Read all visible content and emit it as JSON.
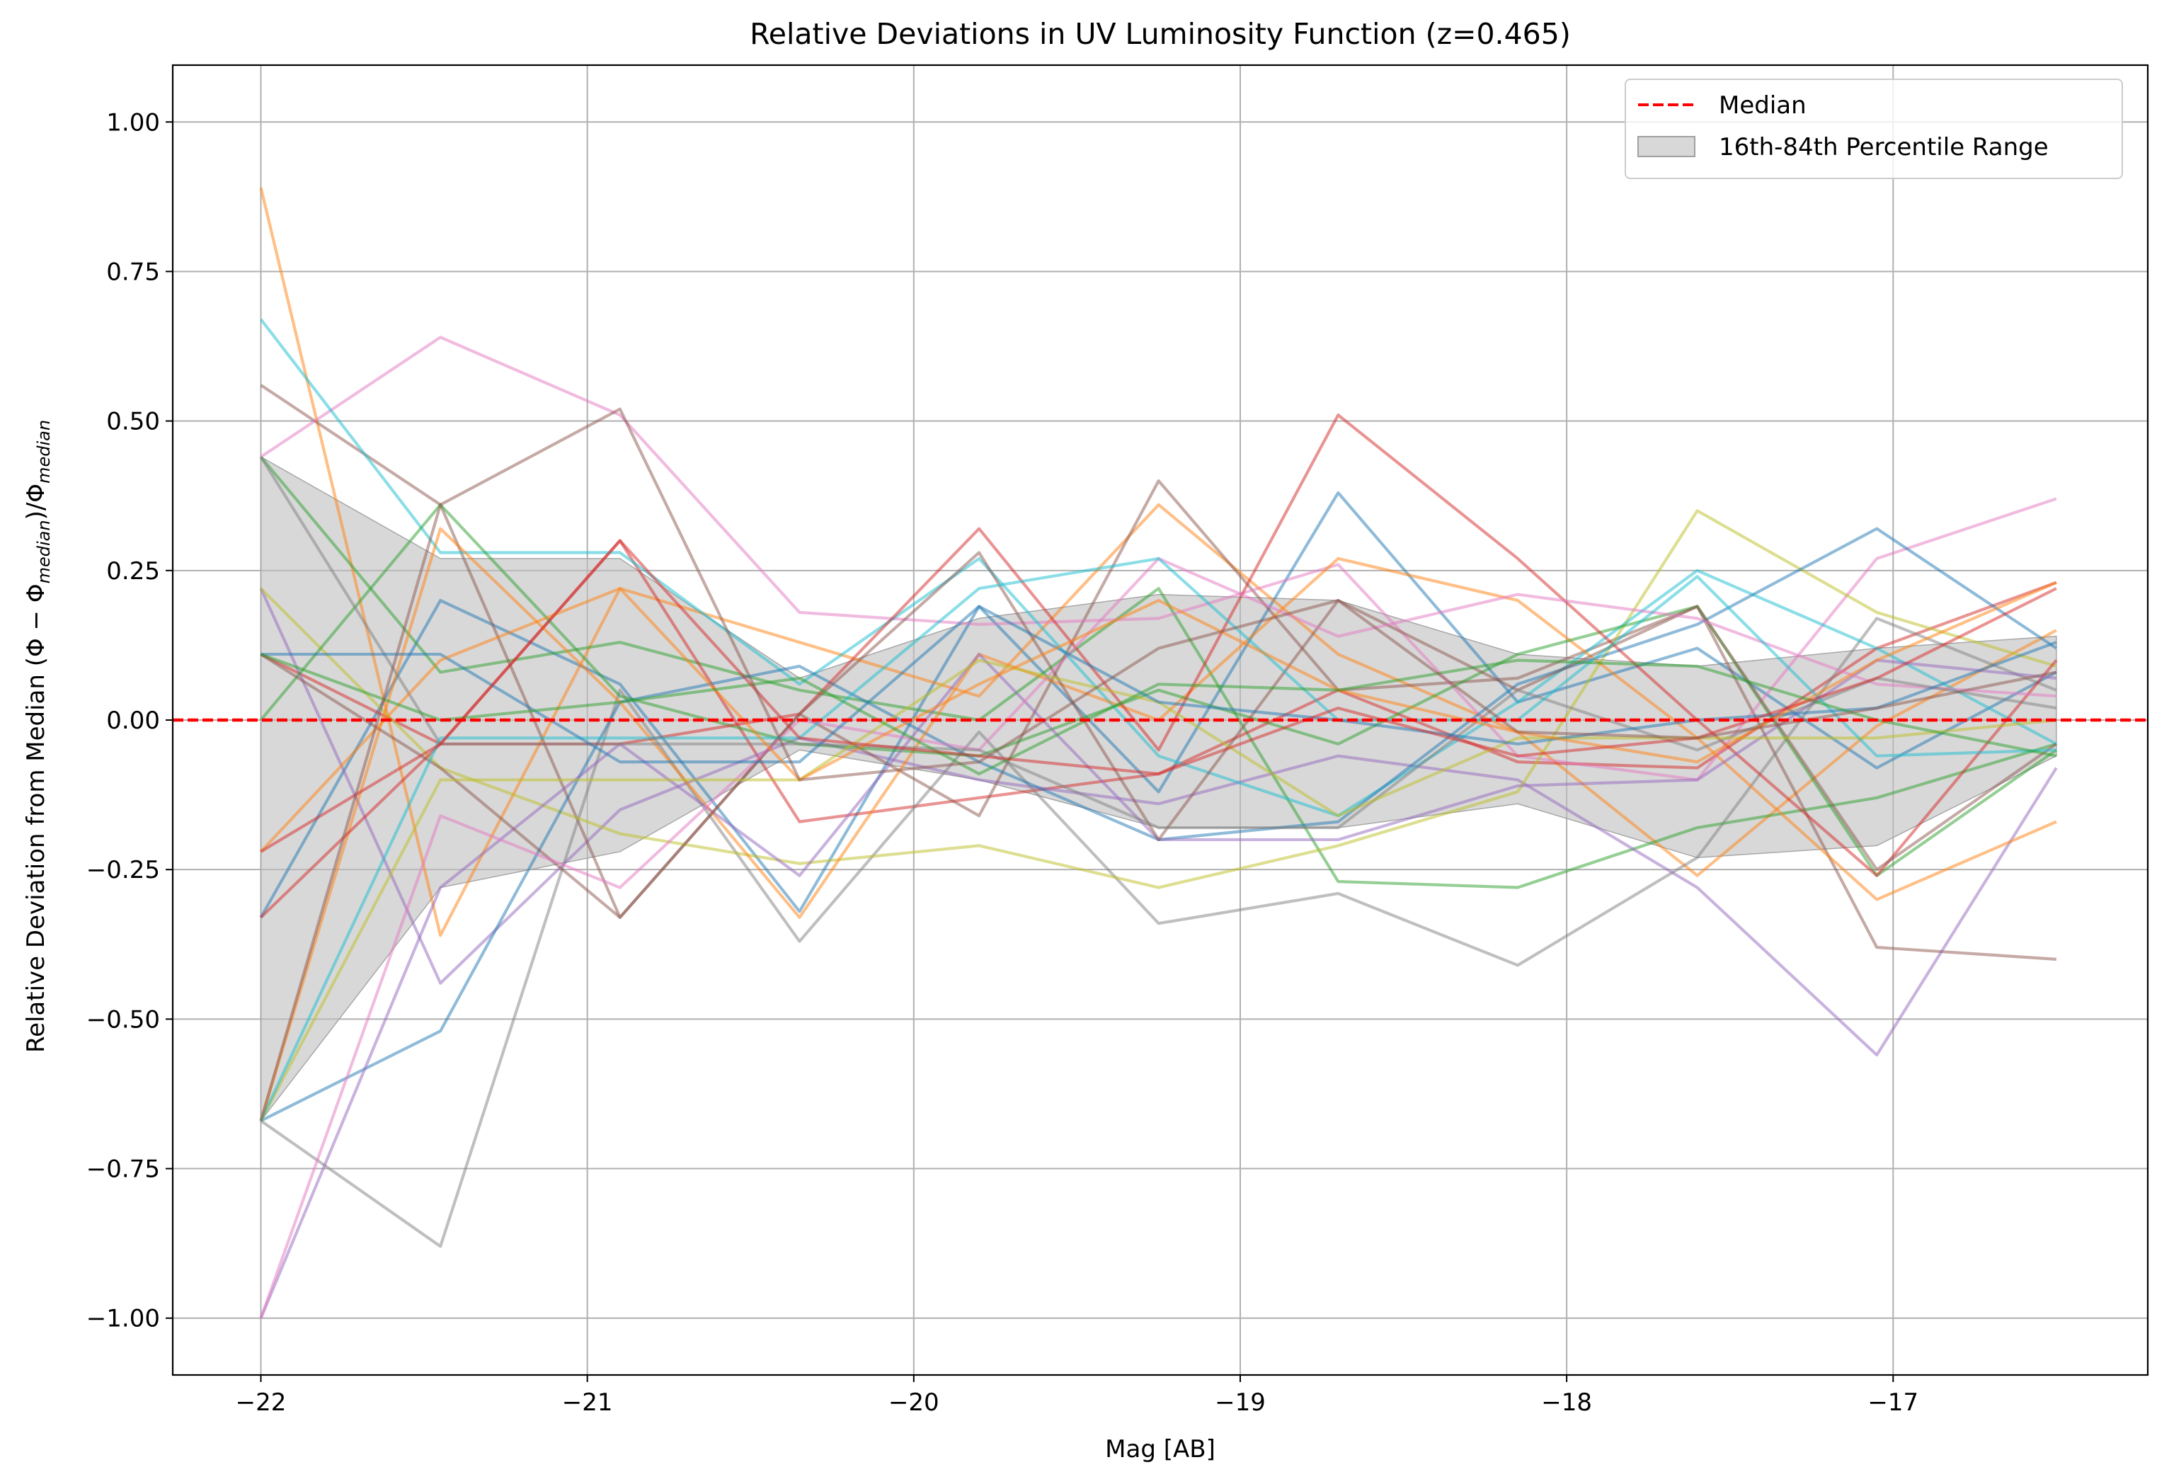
{
  "chart_data": {
    "type": "line",
    "title": "Relative Deviations in UV Luminosity Function (z=0.465)",
    "xlabel": "Mag [AB]",
    "ylabel": "Relative Deviation from Median (Φ − Φ_median)/Φ_median",
    "ylabel_parts": {
      "prefix": "Relative Deviation from Median (Φ − Φ",
      "sub1": "median",
      "mid": ")/Φ",
      "sub2": "median"
    },
    "xlim": [
      -22.27,
      -16.22
    ],
    "ylim": [
      -1.095,
      1.095
    ],
    "xticks": [
      -22,
      -21,
      -20,
      -19,
      -18,
      -17
    ],
    "xtick_labels": [
      "−22",
      "−21",
      "−20",
      "−19",
      "−18",
      "−17"
    ],
    "yticks": [
      1.0,
      0.75,
      0.5,
      0.25,
      0.0,
      -0.25,
      -0.5,
      -0.75,
      -1.0
    ],
    "ytick_labels": [
      "1.00",
      "0.75",
      "0.50",
      "0.25",
      "0.00",
      "−0.25",
      "−0.50",
      "−0.75",
      "−1.00"
    ],
    "grid": true,
    "legend": {
      "placement": "top-right",
      "entries": [
        {
          "label": "Median",
          "color": "#ff0000",
          "style": "dashed"
        },
        {
          "label": "16th-84th Percentile Range",
          "color": "#bebebe",
          "style": "fill"
        }
      ]
    },
    "x": [
      -22.0,
      -21.45,
      -20.9,
      -20.35,
      -19.8,
      -19.25,
      -18.7,
      -18.15,
      -17.6,
      -17.05,
      -16.5
    ],
    "median": {
      "name": "Median",
      "values": [
        0,
        0,
        0,
        0,
        0,
        0,
        0,
        0,
        0,
        0,
        0
      ]
    },
    "band": {
      "name": "16th-84th Percentile Range",
      "upper": [
        0.44,
        0.27,
        0.27,
        0.07,
        0.17,
        0.21,
        0.2,
        0.11,
        0.09,
        0.12,
        0.14
      ],
      "lower": [
        -0.67,
        -0.28,
        -0.22,
        -0.05,
        -0.1,
        -0.18,
        -0.18,
        -0.14,
        -0.23,
        -0.21,
        -0.06
      ]
    },
    "series": [
      {
        "color": "#1f77b4",
        "values": [
          -0.33,
          0.2,
          0.06,
          -0.32,
          0.19,
          -0.12,
          0.38,
          0.03,
          0.12,
          -0.08,
          0.08
        ]
      },
      {
        "color": "#ff7f0e",
        "values": [
          0.89,
          -0.36,
          0.22,
          0.13,
          0.04,
          0.36,
          0.11,
          -0.02,
          -0.26,
          -0.01,
          0.15
        ]
      },
      {
        "color": "#2ca02c",
        "values": [
          0.44,
          0.08,
          0.13,
          0.05,
          0.0,
          0.22,
          -0.27,
          -0.28,
          -0.18,
          -0.13,
          -0.04
        ]
      },
      {
        "color": "#d62728",
        "values": [
          0.11,
          -0.04,
          0.3,
          -0.17,
          -0.13,
          -0.09,
          0.05,
          -0.07,
          -0.08,
          0.12,
          0.23
        ]
      },
      {
        "color": "#9467bd",
        "values": [
          0.22,
          -0.44,
          -0.15,
          -0.03,
          -0.1,
          -0.14,
          -0.06,
          -0.1,
          -0.28,
          -0.56,
          -0.08
        ]
      },
      {
        "color": "#8c564b",
        "values": [
          0.56,
          0.36,
          -0.33,
          0.01,
          -0.16,
          0.4,
          0.05,
          0.07,
          0.19,
          -0.38,
          -0.4
        ]
      },
      {
        "color": "#e377c2",
        "values": [
          0.44,
          0.64,
          0.51,
          0.18,
          0.16,
          0.17,
          0.26,
          -0.06,
          -0.1,
          0.27,
          0.37
        ]
      },
      {
        "color": "#7f7f7f",
        "values": [
          -0.67,
          -0.88,
          0.05,
          -0.37,
          -0.02,
          -0.34,
          -0.29,
          -0.41,
          -0.23,
          0.17,
          0.05
        ]
      },
      {
        "color": "#bcbd22",
        "values": [
          0.22,
          -0.08,
          -0.19,
          -0.24,
          -0.21,
          -0.28,
          -0.21,
          -0.12,
          0.35,
          0.18,
          0.09
        ]
      },
      {
        "color": "#17becf",
        "values": [
          0.67,
          0.28,
          0.28,
          0.06,
          0.27,
          -0.06,
          -0.16,
          0.03,
          0.25,
          0.12,
          -0.04
        ]
      },
      {
        "color": "#1f77b4",
        "values": [
          -0.67,
          -0.52,
          0.03,
          0.09,
          -0.07,
          -0.2,
          -0.17,
          0.06,
          0.16,
          0.32,
          0.12
        ]
      },
      {
        "color": "#ff7f0e",
        "values": [
          -0.67,
          0.32,
          0.03,
          -0.33,
          0.11,
          0.0,
          0.27,
          0.2,
          -0.03,
          -0.3,
          -0.17
        ]
      },
      {
        "color": "#2ca02c",
        "values": [
          0.0,
          0.36,
          0.04,
          -0.04,
          -0.06,
          0.05,
          -0.04,
          0.11,
          0.19,
          -0.26,
          -0.05
        ]
      },
      {
        "color": "#d62728",
        "values": [
          -0.33,
          -0.04,
          -0.04,
          0.01,
          0.32,
          -0.05,
          0.51,
          0.27,
          0.0,
          -0.26,
          0.1
        ]
      },
      {
        "color": "#9467bd",
        "values": [
          -1.0,
          -0.28,
          -0.04,
          -0.26,
          0.11,
          -0.2,
          -0.2,
          -0.11,
          -0.1,
          0.1,
          0.07
        ]
      },
      {
        "color": "#8c564b",
        "values": [
          0.11,
          -0.08,
          -0.33,
          0.01,
          0.28,
          -0.2,
          0.2,
          0.05,
          0.19,
          -0.25,
          -0.04
        ]
      },
      {
        "color": "#e377c2",
        "values": [
          -1.0,
          -0.16,
          -0.28,
          0.0,
          -0.05,
          0.27,
          0.14,
          0.21,
          0.17,
          0.06,
          0.04
        ]
      },
      {
        "color": "#7f7f7f",
        "values": [
          0.44,
          -0.04,
          -0.04,
          -0.04,
          -0.05,
          -0.18,
          -0.18,
          0.05,
          -0.05,
          0.07,
          0.02
        ]
      },
      {
        "color": "#bcbd22",
        "values": [
          -0.67,
          -0.1,
          -0.1,
          -0.1,
          0.1,
          0.03,
          -0.16,
          -0.03,
          -0.03,
          -0.03,
          0.0
        ]
      },
      {
        "color": "#17becf",
        "values": [
          -0.67,
          -0.03,
          -0.03,
          -0.03,
          0.22,
          0.27,
          0.0,
          0.0,
          0.24,
          -0.06,
          -0.05
        ]
      },
      {
        "color": "#1f77b4",
        "values": [
          0.11,
          0.11,
          -0.07,
          -0.07,
          0.19,
          0.03,
          0.0,
          -0.04,
          0.0,
          0.02,
          0.13
        ]
      },
      {
        "color": "#ff7f0e",
        "values": [
          -0.22,
          0.1,
          0.22,
          -0.1,
          0.06,
          0.2,
          0.05,
          -0.02,
          -0.07,
          0.1,
          0.23
        ]
      },
      {
        "color": "#2ca02c",
        "values": [
          0.11,
          0.0,
          0.03,
          0.07,
          -0.09,
          0.06,
          0.05,
          0.1,
          0.09,
          0.0,
          -0.06
        ]
      },
      {
        "color": "#d62728",
        "values": [
          -0.22,
          -0.04,
          0.3,
          -0.03,
          -0.06,
          -0.09,
          0.02,
          -0.06,
          -0.03,
          0.07,
          0.22
        ]
      },
      {
        "color": "#8c564b",
        "values": [
          -0.67,
          0.36,
          0.52,
          -0.1,
          -0.07,
          0.12,
          0.2,
          -0.02,
          -0.03,
          0.02,
          0.08
        ]
      }
    ]
  }
}
